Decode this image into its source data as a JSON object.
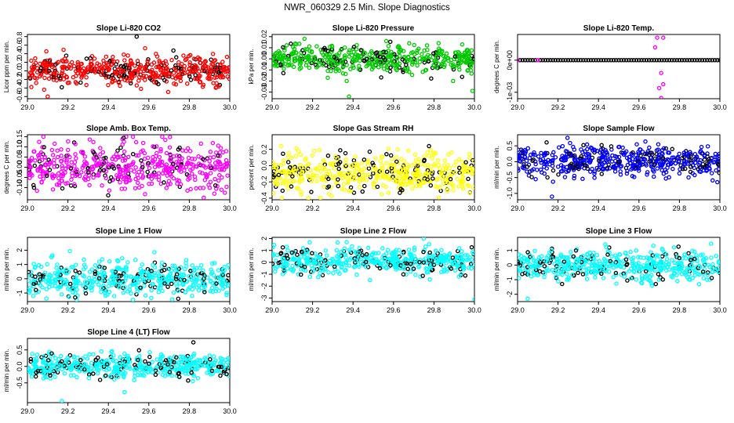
{
  "figure_title": "NWR_060329  2.5 Min. Slope Diagnostics",
  "colors": {
    "background": "#ffffff",
    "axes": "#000000",
    "black_points": "#000000"
  },
  "chart_data": [
    {
      "type": "scatter",
      "title": "Slope Li-820 CO2",
      "ylabel": "Licor ppm per min.",
      "color": "#ff0000",
      "xlim": [
        29.0,
        30.0
      ],
      "ylim": [
        -0.65,
        0.85
      ],
      "xticks": [
        29.0,
        29.2,
        29.4,
        29.6,
        29.8,
        30.0
      ],
      "xtick_labels": [
        "29.0",
        "29.2",
        "29.4",
        "29.6",
        "29.8",
        "30.0"
      ],
      "yticks": [
        -0.6,
        -0.4,
        -0.2,
        0.0,
        0.2,
        0.4,
        0.6,
        0.8
      ],
      "ytick_labels": [
        "-0.6",
        "-0.4",
        "-0.2",
        "0.0",
        "0.2",
        "0.4",
        "0.6",
        "0.8"
      ],
      "points": {
        "n": 520,
        "center": 0.0,
        "spread": 0.17,
        "max_abs": 0.55,
        "black_fraction": 0.22
      },
      "extra_points": [
        {
          "x": 29.54,
          "y": 0.8,
          "color": "black"
        },
        {
          "x": 29.1,
          "y": -0.6,
          "color": "red"
        }
      ]
    },
    {
      "type": "scatter",
      "title": "Slope Li-820 Pressure",
      "ylabel": "kPa per min.",
      "color": "#00cc00",
      "xlim": [
        29.0,
        30.0
      ],
      "ylim": [
        -0.036,
        0.022
      ],
      "xticks": [
        29.0,
        29.2,
        29.4,
        29.6,
        29.8,
        30.0
      ],
      "xtick_labels": [
        "29.0",
        "29.2",
        "29.4",
        "29.6",
        "29.8",
        "30.0"
      ],
      "yticks": [
        -0.03,
        -0.02,
        -0.01,
        0.0,
        0.01,
        0.02
      ],
      "ytick_labels": [
        "-0.03",
        "-0.02",
        "-0.01",
        "0.00",
        "0.01",
        "0.02"
      ],
      "points": {
        "n": 520,
        "center": 0.0,
        "spread": 0.006,
        "max_abs": 0.02,
        "black_fraction": 0.2
      },
      "extra_points": [
        {
          "x": 29.38,
          "y": -0.034,
          "color": "green"
        },
        {
          "x": 29.99,
          "y": -0.029,
          "color": "green"
        }
      ]
    },
    {
      "type": "scatter",
      "title": "Slope Li-820 Temp.",
      "ylabel": "degrees C per min.",
      "color": "#ff00ff",
      "xlim": [
        29.0,
        30.0
      ],
      "ylim": [
        -0.0012,
        0.0008
      ],
      "xticks": [
        29.0,
        29.2,
        29.4,
        29.6,
        29.8,
        30.0
      ],
      "xtick_labels": [
        "29.0",
        "29.2",
        "29.4",
        "29.6",
        "29.8",
        "30.0"
      ],
      "yticks": [
        -0.001,
        0.0
      ],
      "ytick_labels": [
        "-1e-03",
        "0e+00"
      ],
      "points": {
        "n": 0,
        "center": 0.0,
        "spread": 0.0,
        "max_abs": 0.0,
        "black_fraction": 0.0
      },
      "flat_line": {
        "y": 0.0,
        "step": 0.0125
      },
      "extra_points": [
        {
          "x": 29.1,
          "y": 0.0,
          "color": "magenta"
        },
        {
          "x": 29.0,
          "y": 0.0,
          "color": "magenta"
        },
        {
          "x": 29.69,
          "y": 0.0007,
          "color": "magenta"
        },
        {
          "x": 29.72,
          "y": 0.0007,
          "color": "magenta"
        },
        {
          "x": 29.68,
          "y": 0.0004,
          "color": "magenta"
        },
        {
          "x": 29.71,
          "y": -0.0004,
          "color": "magenta"
        },
        {
          "x": 29.72,
          "y": -0.00075,
          "color": "magenta"
        },
        {
          "x": 29.7,
          "y": -0.00087,
          "color": "magenta"
        },
        {
          "x": 29.71,
          "y": -0.00118,
          "color": "magenta"
        }
      ]
    },
    {
      "type": "scatter",
      "title": "Slope Amb. Box Temp.",
      "ylabel": "degrees C per min.",
      "color": "#ff00ff",
      "xlim": [
        29.0,
        30.0
      ],
      "ylim": [
        -0.16,
        0.16
      ],
      "xticks": [
        29.0,
        29.2,
        29.4,
        29.6,
        29.8,
        30.0
      ],
      "xtick_labels": [
        "29.0",
        "29.2",
        "29.4",
        "29.6",
        "29.8",
        "30.0"
      ],
      "yticks": [
        -0.1,
        -0.05,
        0.0,
        0.05,
        0.1,
        0.15
      ],
      "ytick_labels": [
        "-0.10",
        "-0.05",
        "0.00",
        "0.05",
        "0.10",
        "0.15"
      ],
      "points": {
        "n": 520,
        "center": 0.0,
        "spread": 0.055,
        "max_abs": 0.15,
        "black_fraction": 0.2
      },
      "extra_points": []
    },
    {
      "type": "scatter",
      "title": "Slope Gas Stream RH",
      "ylabel": "percent per min.",
      "color": "#ffff00",
      "xlim": [
        29.0,
        30.0
      ],
      "ylim": [
        -0.42,
        0.38
      ],
      "xticks": [
        29.0,
        29.2,
        29.4,
        29.6,
        29.8,
        30.0
      ],
      "xtick_labels": [
        "29.0",
        "29.2",
        "29.4",
        "29.6",
        "29.8",
        "30.0"
      ],
      "yticks": [
        -0.4,
        -0.2,
        0.0,
        0.2
      ],
      "ytick_labels": [
        "-0.4",
        "-0.2",
        "0.0",
        "0.2"
      ],
      "points": {
        "n": 520,
        "center": -0.08,
        "spread": 0.12,
        "max_abs": 0.32,
        "black_fraction": 0.2
      },
      "extra_points": []
    },
    {
      "type": "scatter",
      "title": "Slope Sample Flow",
      "ylabel": "ml/min per min.",
      "color": "#0000ff",
      "xlim": [
        29.0,
        30.0
      ],
      "ylim": [
        -1.2,
        0.85
      ],
      "xticks": [
        29.0,
        29.2,
        29.4,
        29.6,
        29.8,
        30.0
      ],
      "xtick_labels": [
        "29.0",
        "29.2",
        "29.4",
        "29.6",
        "29.8",
        "30.0"
      ],
      "yticks": [
        -1.0,
        -0.5,
        0.0,
        0.5
      ],
      "ytick_labels": [
        "-1.0",
        "-0.5",
        "0.0",
        "0.5"
      ],
      "points": {
        "n": 520,
        "center": 0.0,
        "spread": 0.25,
        "max_abs": 0.75,
        "black_fraction": 0.2
      },
      "extra_points": [
        {
          "x": 29.17,
          "y": -1.1,
          "color": "blue"
        }
      ]
    },
    {
      "type": "scatter",
      "title": "Slope Line 1 Flow",
      "ylabel": "ml/min per min.",
      "color": "#00ffff",
      "xlim": [
        29.0,
        30.0
      ],
      "ylim": [
        -1.6,
        2.9
      ],
      "xticks": [
        29.0,
        29.2,
        29.4,
        29.6,
        29.8,
        30.0
      ],
      "xtick_labels": [
        "29.0",
        "29.2",
        "29.4",
        "29.6",
        "29.8",
        "30.0"
      ],
      "yticks": [
        -1,
        0,
        1,
        2
      ],
      "ytick_labels": [
        "-1",
        "0",
        "1",
        "2"
      ],
      "points": {
        "n": 520,
        "center": 0.0,
        "spread": 0.6,
        "max_abs": 2.5,
        "black_fraction": 0.2
      },
      "extra_points": []
    },
    {
      "type": "scatter",
      "title": "Slope Line 2 Flow",
      "ylabel": "ml/min per min.",
      "color": "#00ffff",
      "xlim": [
        29.0,
        30.0
      ],
      "ylim": [
        -3.3,
        2.1
      ],
      "xticks": [
        29.0,
        29.2,
        29.4,
        29.6,
        29.8,
        30.0
      ],
      "xtick_labels": [
        "29.0",
        "29.2",
        "29.4",
        "29.6",
        "29.8",
        "30.0"
      ],
      "yticks": [
        -3,
        -2,
        -1,
        0,
        1,
        2
      ],
      "ytick_labels": [
        "-3",
        "-2",
        "-1",
        "0",
        "1",
        "2"
      ],
      "points": {
        "n": 520,
        "center": 0.1,
        "spread": 0.55,
        "max_abs": 1.9,
        "black_fraction": 0.2
      },
      "extra_points": [
        {
          "x": 30.0,
          "y": -3.1,
          "color": "cyan"
        }
      ]
    },
    {
      "type": "scatter",
      "title": "Slope Line 3 Flow",
      "ylabel": "ml/min per min.",
      "color": "#00ffff",
      "xlim": [
        29.0,
        30.0
      ],
      "ylim": [
        -2.5,
        1.9
      ],
      "xticks": [
        29.0,
        29.2,
        29.4,
        29.6,
        29.8,
        30.0
      ],
      "xtick_labels": [
        "29.0",
        "29.2",
        "29.4",
        "29.6",
        "29.8",
        "30.0"
      ],
      "yticks": [
        -2,
        -1,
        0,
        1
      ],
      "ytick_labels": [
        "-2",
        "-1",
        "0",
        "1"
      ],
      "points": {
        "n": 520,
        "center": 0.0,
        "spread": 0.55,
        "max_abs": 1.8,
        "black_fraction": 0.2
      },
      "extra_points": [
        {
          "x": 29.05,
          "y": -2.3,
          "color": "cyan"
        }
      ]
    },
    {
      "type": "scatter",
      "title": "Slope Line 4 (LT) Flow",
      "ylabel": "ml/min per min.",
      "color": "#00ffff",
      "xlim": [
        29.0,
        30.0
      ],
      "ylim": [
        -1.1,
        0.85
      ],
      "xticks": [
        29.0,
        29.2,
        29.4,
        29.6,
        29.8,
        30.0
      ],
      "xtick_labels": [
        "29.0",
        "29.2",
        "29.4",
        "29.6",
        "29.8",
        "30.0"
      ],
      "yticks": [
        -0.5,
        0.0,
        0.5
      ],
      "ytick_labels": [
        "-0.5",
        "0.0",
        "0.5"
      ],
      "points": {
        "n": 520,
        "center": 0.0,
        "spread": 0.17,
        "max_abs": 0.55,
        "black_fraction": 0.2
      },
      "extra_points": [
        {
          "x": 29.17,
          "y": -1.05,
          "color": "cyan"
        },
        {
          "x": 29.48,
          "y": -0.78,
          "color": "cyan"
        },
        {
          "x": 29.82,
          "y": 0.73,
          "color": "black"
        }
      ]
    }
  ]
}
